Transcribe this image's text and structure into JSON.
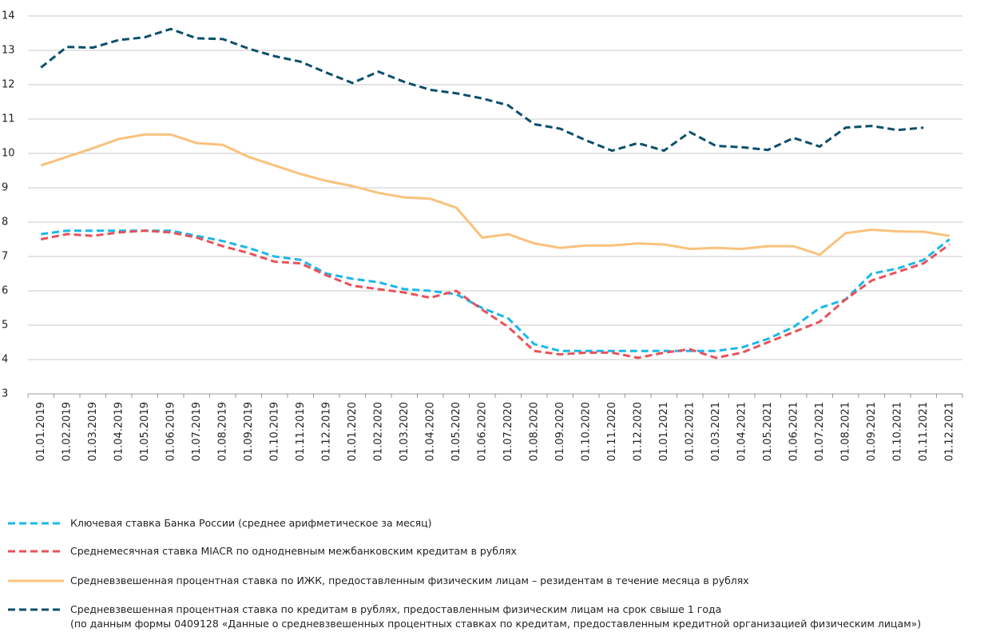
{
  "chart_data": {
    "type": "line",
    "categories": [
      "01.01.2019",
      "01.02.2019",
      "01.03.2019",
      "01.04.2019",
      "01.05.2019",
      "01.06.2019",
      "01.07.2019",
      "01.08.2019",
      "01.09.2019",
      "01.10.2019",
      "01.11.2019",
      "01.12.2019",
      "01.01.2020",
      "01.02.2020",
      "01.03.2020",
      "01.04.2020",
      "01.05.2020",
      "01.06.2020",
      "01.07.2020",
      "01.08.2020",
      "01.09.2020",
      "01.10.2020",
      "01.11.2020",
      "01.12.2020",
      "01.01.2021",
      "01.02.2021",
      "01.03.2021",
      "01.04.2021",
      "01.05.2021",
      "01.06.2021",
      "01.07.2021",
      "01.08.2021",
      "01.09.2021",
      "01.10.2021",
      "01.11.2021",
      "01.12.2021"
    ],
    "series": [
      {
        "name": "Ключевая ставка Банка России (среднее арифметическое за месяц)",
        "color": "#1ab7ea",
        "dashed": true,
        "values": [
          7.65,
          7.75,
          7.75,
          7.75,
          7.75,
          7.75,
          7.6,
          7.45,
          7.25,
          7.0,
          6.9,
          6.5,
          6.35,
          6.25,
          6.05,
          6.0,
          5.9,
          5.5,
          5.2,
          4.45,
          4.25,
          4.25,
          4.25,
          4.25,
          4.25,
          4.25,
          4.25,
          4.35,
          4.6,
          4.95,
          5.5,
          5.75,
          6.5,
          6.65,
          6.9,
          7.5
        ]
      },
      {
        "name": "Среднемесячная ставка MIACR по однодневным межбанковским кредитам в рублях",
        "color": "#e8525a",
        "dashed": true,
        "values": [
          7.5,
          7.65,
          7.6,
          7.7,
          7.75,
          7.7,
          7.55,
          7.3,
          7.1,
          6.85,
          6.8,
          6.45,
          6.15,
          6.05,
          5.95,
          5.8,
          6.0,
          5.45,
          4.95,
          4.25,
          4.15,
          4.2,
          4.2,
          4.05,
          4.2,
          4.3,
          4.05,
          4.2,
          4.5,
          4.8,
          5.1,
          5.75,
          6.3,
          6.55,
          6.8,
          7.35
        ]
      },
      {
        "name": "Средневзвешенная процентная ставка по ИЖК, предоставленным физическим лицам – резидентам в течение месяца в рублях",
        "color": "#f9c27c",
        "dashed": false,
        "values": [
          9.65,
          9.9,
          10.15,
          10.42,
          10.55,
          10.55,
          10.3,
          10.25,
          9.9,
          9.65,
          9.4,
          9.2,
          9.05,
          8.85,
          8.72,
          8.68,
          8.42,
          7.55,
          7.65,
          7.38,
          7.25,
          7.32,
          7.32,
          7.38,
          7.35,
          7.22,
          7.25,
          7.22,
          7.3,
          7.3,
          7.05,
          7.68,
          7.78,
          7.73,
          7.72,
          7.6
        ]
      },
      {
        "name": "Средневзвешенная процентная ставка по кредитам в рублях, предоставленным физическим лицам на срок свыше 1 года\n(по данным формы 0409128 «Данные о средневзвешенных процентных ставках по кредитам, предоставленным кредитной организацией физическим лицам»)",
        "color": "#0b4f6c",
        "dashed": true,
        "values": [
          12.5,
          13.1,
          13.08,
          13.3,
          13.38,
          13.62,
          13.35,
          13.33,
          13.05,
          12.83,
          12.67,
          12.35,
          12.05,
          12.38,
          12.08,
          11.85,
          11.75,
          11.6,
          11.4,
          10.85,
          10.72,
          10.38,
          10.08,
          10.3,
          10.08,
          10.62,
          10.22,
          10.18,
          10.1,
          10.45,
          10.2,
          10.75,
          10.8,
          10.68,
          10.75,
          null
        ]
      }
    ],
    "ylim": [
      3,
      14
    ],
    "yticks": [
      3,
      4,
      5,
      6,
      7,
      8,
      9,
      10,
      11,
      12,
      13,
      14
    ],
    "grid": true
  }
}
